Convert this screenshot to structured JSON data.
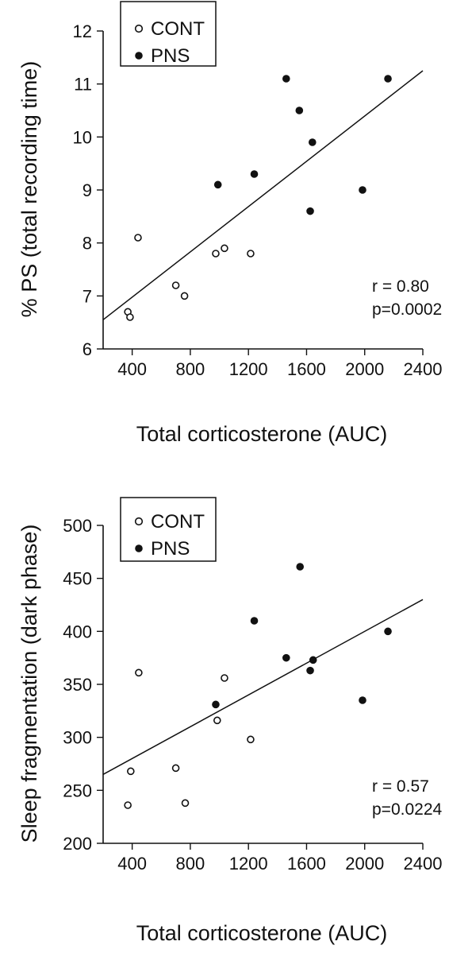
{
  "chart_data": [
    {
      "type": "scatter",
      "xlabel": "Total corticosterone (AUC)",
      "ylabel": "% PS (total recording time)",
      "xlim": [
        200,
        2400
      ],
      "ylim": [
        6,
        12
      ],
      "xticks": [
        400,
        800,
        1200,
        1600,
        2000,
        2400
      ],
      "yticks": [
        6,
        7,
        8,
        9,
        10,
        11,
        12
      ],
      "legend_position": "top-left",
      "series": [
        {
          "name": "CONT",
          "marker": "open-circle",
          "points": [
            {
              "x": 370,
              "y": 6.7
            },
            {
              "x": 385,
              "y": 6.6
            },
            {
              "x": 440,
              "y": 8.1
            },
            {
              "x": 700,
              "y": 7.2
            },
            {
              "x": 760,
              "y": 7.0
            },
            {
              "x": 975,
              "y": 7.8
            },
            {
              "x": 1035,
              "y": 7.9
            },
            {
              "x": 1215,
              "y": 7.8
            }
          ]
        },
        {
          "name": "PNS",
          "marker": "filled-circle",
          "points": [
            {
              "x": 990,
              "y": 9.1
            },
            {
              "x": 1240,
              "y": 9.3
            },
            {
              "x": 1460,
              "y": 11.1
            },
            {
              "x": 1550,
              "y": 10.5
            },
            {
              "x": 1625,
              "y": 8.6
            },
            {
              "x": 1640,
              "y": 9.9
            },
            {
              "x": 1985,
              "y": 9.0
            },
            {
              "x": 2160,
              "y": 11.1
            }
          ]
        }
      ],
      "regression_line": {
        "x": [
          200,
          2400
        ],
        "y": [
          6.55,
          11.25
        ]
      },
      "annotations": [
        "r = 0.80",
        "p=0.0002"
      ]
    },
    {
      "type": "scatter",
      "xlabel": "Total corticosterone (AUC)",
      "ylabel": "Sleep fragmentation (dark phase)",
      "xlim": [
        200,
        2400
      ],
      "ylim": [
        200,
        500
      ],
      "xticks": [
        400,
        800,
        1200,
        1600,
        2000,
        2400
      ],
      "yticks": [
        200,
        250,
        300,
        350,
        400,
        450,
        500
      ],
      "legend_position": "top-left",
      "series": [
        {
          "name": "CONT",
          "marker": "open-circle",
          "points": [
            {
              "x": 370,
              "y": 236
            },
            {
              "x": 390,
              "y": 268
            },
            {
              "x": 445,
              "y": 361
            },
            {
              "x": 700,
              "y": 271
            },
            {
              "x": 765,
              "y": 238
            },
            {
              "x": 985,
              "y": 316
            },
            {
              "x": 1035,
              "y": 356
            },
            {
              "x": 1215,
              "y": 298
            }
          ]
        },
        {
          "name": "PNS",
          "marker": "filled-circle",
          "points": [
            {
              "x": 975,
              "y": 331
            },
            {
              "x": 1240,
              "y": 410
            },
            {
              "x": 1460,
              "y": 375
            },
            {
              "x": 1555,
              "y": 461
            },
            {
              "x": 1625,
              "y": 363
            },
            {
              "x": 1645,
              "y": 373
            },
            {
              "x": 1985,
              "y": 335
            },
            {
              "x": 2160,
              "y": 400
            }
          ]
        }
      ],
      "regression_line": {
        "x": [
          200,
          2400
        ],
        "y": [
          265,
          430
        ]
      },
      "annotations": [
        "r = 0.57",
        "p=0.0224"
      ]
    }
  ]
}
